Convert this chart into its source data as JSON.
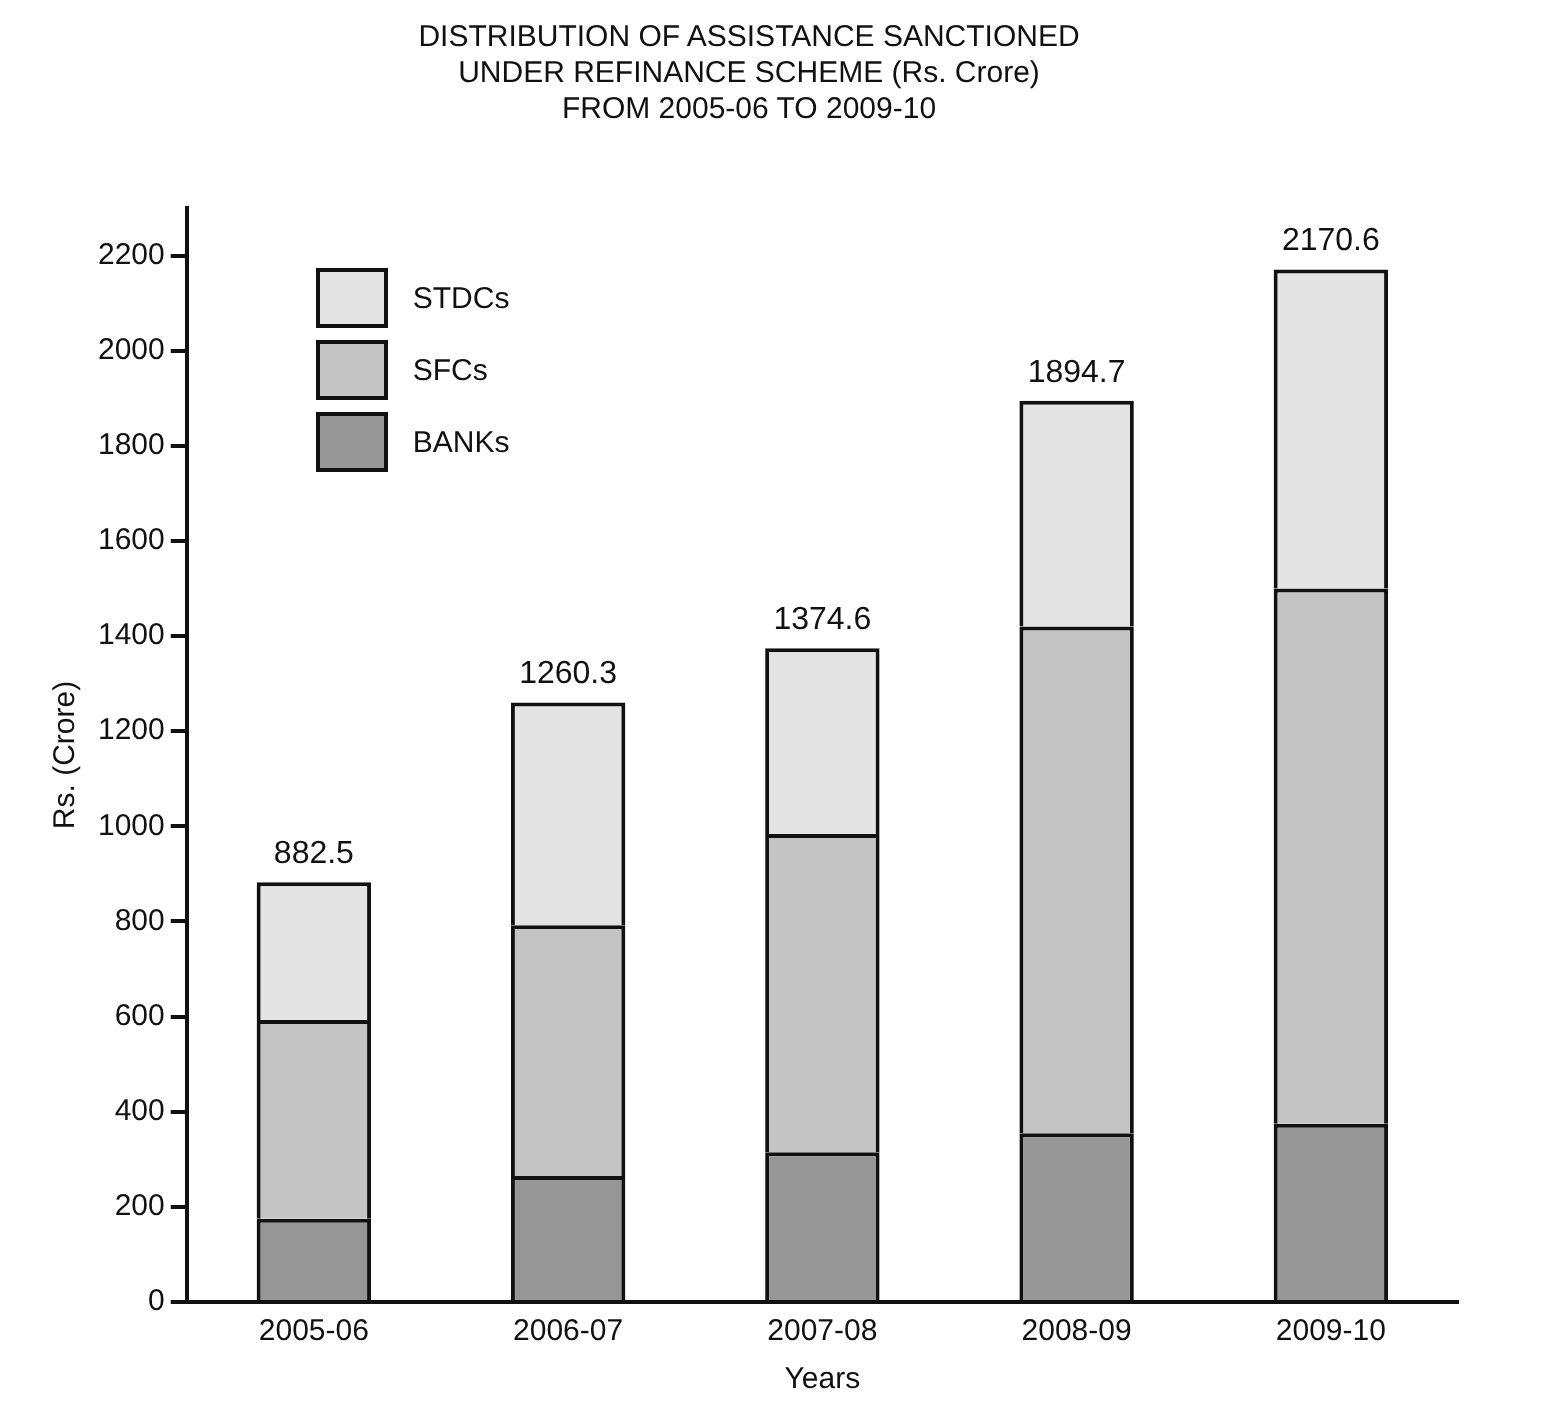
{
  "chart_data": {
    "type": "bar",
    "title": "DISTRIBUTION OF ASSISTANCE SANCTIONED\nUNDER REFINANCE SCHEME (Rs. Crore)\nFROM 2005-06 TO 2009-10",
    "xlabel": "Years",
    "ylabel": "Rs. (Crore)",
    "categories": [
      "2005-06",
      "2006-07",
      "2007-08",
      "2008-09",
      "2009-10"
    ],
    "series": [
      {
        "name": "BANKs",
        "color": "#969696",
        "values": [
          175,
          265,
          315,
          355,
          375
        ]
      },
      {
        "name": "SFCs",
        "color": "#c4c4c4",
        "values": [
          418,
          527,
          669,
          1065,
          1125
        ]
      },
      {
        "name": "STDCs",
        "color": "#e4e4e4",
        "values": [
          289.5,
          468.3,
          390.6,
          474.7,
          670.6
        ]
      }
    ],
    "stacked": true,
    "totals": [
      "882.5",
      "1260.3",
      "1374.6",
      "1894.7",
      "2170.6"
    ],
    "ylim": [
      0,
      2300
    ],
    "yticks": [
      0,
      200,
      400,
      600,
      800,
      1000,
      1200,
      1400,
      1600,
      1800,
      2000,
      2200
    ],
    "grid": false,
    "legend": "top left"
  }
}
